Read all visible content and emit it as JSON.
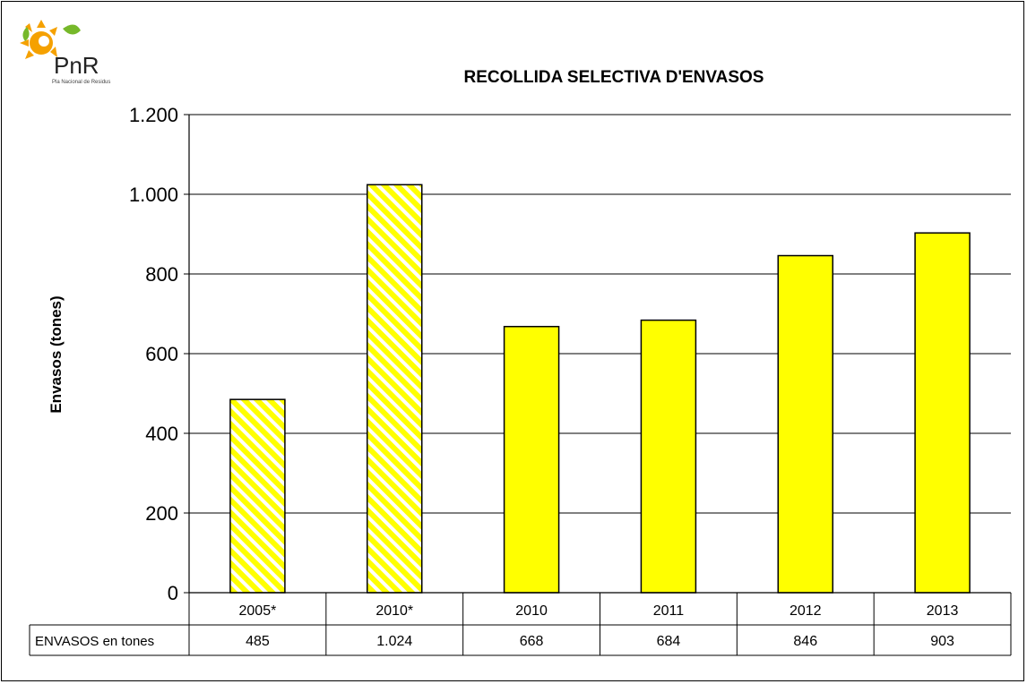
{
  "logo": {
    "text": "PnR",
    "subtitle": "Pla Nacional de Residus",
    "colors": {
      "sun": "#f5a100",
      "leaf": "#76b82a",
      "letters": "#222222"
    }
  },
  "chart_data": {
    "type": "bar",
    "title": "RECOLLIDA SELECTIVA D'ENVASOS",
    "xlabel": "",
    "ylabel": "Envasos (tones)",
    "categories": [
      "2005*",
      "2010*",
      "2010",
      "2011",
      "2012",
      "2013"
    ],
    "series": [
      {
        "name": "ENVASOS en tones",
        "values": [
          485,
          1024,
          668,
          684,
          846,
          903
        ]
      }
    ],
    "value_labels": [
      "485",
      "1.024",
      "668",
      "684",
      "846",
      "903"
    ],
    "hatched": [
      true,
      true,
      false,
      false,
      false,
      false
    ],
    "ylim": [
      0,
      1200
    ],
    "yticks": [
      0,
      200,
      400,
      600,
      800,
      1000,
      1200
    ],
    "ytick_labels": [
      "0",
      "200",
      "400",
      "600",
      "800",
      "1.000",
      "1.200"
    ],
    "grid": true,
    "data_table": true,
    "colors": {
      "bar": "#ffff00",
      "hatch": "#ffffff",
      "outline": "#000000"
    }
  }
}
